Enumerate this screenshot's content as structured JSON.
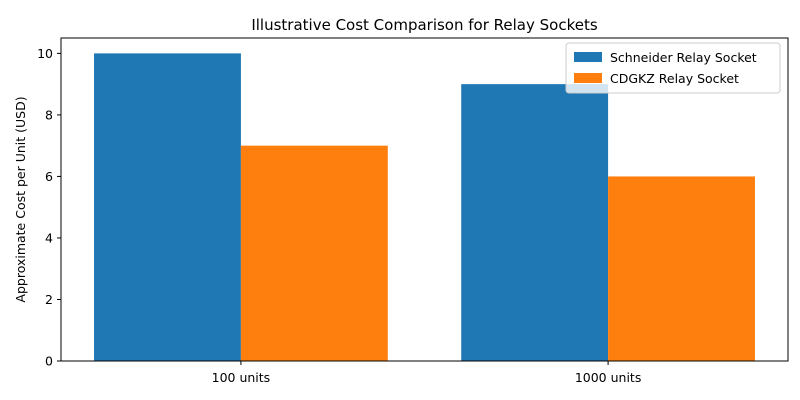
{
  "chart_data": {
    "type": "bar",
    "title": "Illustrative Cost Comparison for Relay Sockets",
    "xlabel": "",
    "ylabel": "Approximate Cost per Unit (USD)",
    "categories": [
      "100 units",
      "1000 units"
    ],
    "series": [
      {
        "name": "Schneider Relay Socket",
        "values": [
          10,
          9
        ],
        "color": "#1f77b4"
      },
      {
        "name": "CDGKZ Relay Socket",
        "values": [
          7,
          6
        ],
        "color": "#ff7f0e"
      }
    ],
    "ylim": [
      0,
      10.5
    ],
    "yticks": [
      0,
      2,
      4,
      6,
      8,
      10
    ],
    "grid": false,
    "legend_position": "top-right"
  }
}
